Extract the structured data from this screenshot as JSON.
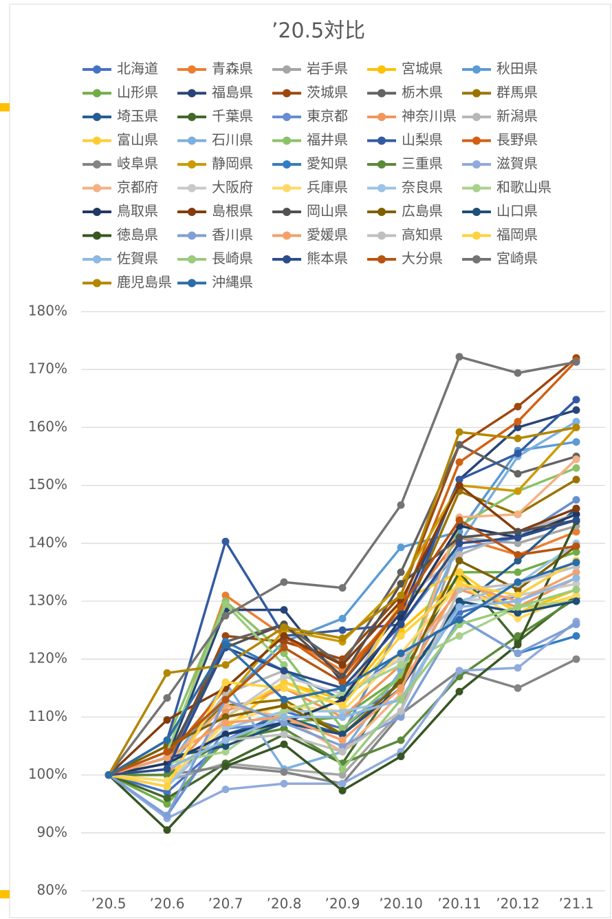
{
  "chart_data": {
    "type": "line",
    "title": "’20.5対比",
    "categories": [
      "’20.5",
      "’20.6",
      "’20.7",
      "’20.8",
      "’20.9",
      "’20.10",
      "’20.11",
      "’20.12",
      "’21.1"
    ],
    "ylim": [
      80,
      180
    ],
    "yticks": [
      {
        "value": 80,
        "label": "80%"
      },
      {
        "value": 90,
        "label": "90%"
      },
      {
        "value": 100,
        "label": "100%"
      },
      {
        "value": 110,
        "label": "110%"
      },
      {
        "value": 120,
        "label": "120%"
      },
      {
        "value": 130,
        "label": "130%"
      },
      {
        "value": 140,
        "label": "140%"
      },
      {
        "value": 150,
        "label": "150%"
      },
      {
        "value": 160,
        "label": "160%"
      },
      {
        "value": 170,
        "label": "170%"
      },
      {
        "value": 180,
        "label": "180%"
      }
    ],
    "grid": true,
    "legend": "top",
    "series": [
      {
        "name": "北海道",
        "color": "#4472C4",
        "values": [
          100,
          97,
          106,
          111,
          108,
          116,
          128,
          131,
          137
        ]
      },
      {
        "name": "青森県",
        "color": "#ED7D31",
        "values": [
          100,
          103,
          131,
          124,
          118,
          128,
          141,
          138,
          142
        ]
      },
      {
        "name": "岩手県",
        "color": "#A5A5A5",
        "values": [
          100,
          99,
          102,
          101,
          100,
          111,
          141,
          140,
          143
        ]
      },
      {
        "name": "宮城県",
        "color": "#FFC000",
        "values": [
          100,
          99,
          108,
          116,
          113,
          125,
          134,
          128,
          132
        ]
      },
      {
        "name": "秋田県",
        "color": "#5B9BD5",
        "values": [
          100,
          101,
          113,
          123,
          127,
          139.3,
          142,
          156,
          157.5
        ]
      },
      {
        "name": "山形県",
        "color": "#70AD47",
        "values": [
          100,
          95,
          106,
          109,
          110,
          117,
          135,
          135,
          138.5
        ]
      },
      {
        "name": "福島県",
        "color": "#264478",
        "values": [
          100,
          103,
          128.5,
          128.5,
          116,
          128,
          151,
          160,
          163
        ]
      },
      {
        "name": "茨城県",
        "color": "#9E480E",
        "values": [
          100,
          102,
          124,
          123,
          120,
          131,
          157,
          163.6,
          172
        ]
      },
      {
        "name": "栃木県",
        "color": "#636363",
        "values": [
          100,
          101,
          123,
          126,
          119,
          135,
          157,
          152,
          155
        ]
      },
      {
        "name": "群馬県",
        "color": "#997300",
        "values": [
          100,
          104,
          112,
          113,
          107,
          126,
          149,
          145,
          151
        ]
      },
      {
        "name": "埼玉県",
        "color": "#255E91",
        "values": [
          100,
          102,
          107,
          110,
          107,
          116,
          129,
          137,
          146
        ]
      },
      {
        "name": "千葉県",
        "color": "#43682B",
        "values": [
          100,
          96,
          102,
          107,
          102,
          117,
          135,
          123,
          131
        ]
      },
      {
        "name": "東京都",
        "color": "#698ED0",
        "values": [
          100,
          93,
          108,
          109,
          107,
          126,
          139,
          141,
          147.5
        ]
      },
      {
        "name": "神奈川県",
        "color": "#F1975A",
        "values": [
          100,
          100,
          111,
          115,
          110,
          119,
          132,
          129,
          134
        ]
      },
      {
        "name": "新潟県",
        "color": "#B7B7B7",
        "values": [
          100,
          101,
          114,
          118,
          113,
          130,
          138,
          142,
          145
        ]
      },
      {
        "name": "富山県",
        "color": "#FFCD33",
        "values": [
          100,
          98,
          110,
          116,
          112,
          130,
          135,
          128,
          131
        ]
      },
      {
        "name": "石川県",
        "color": "#7CAFDD",
        "values": [
          100,
          101,
          116,
          101,
          104,
          118,
          140,
          155,
          161
        ]
      },
      {
        "name": "福井県",
        "color": "#8CC168",
        "values": [
          100,
          106,
          130,
          121,
          108,
          117,
          143,
          149,
          153
        ]
      },
      {
        "name": "山梨県",
        "color": "#335AA1",
        "values": [
          100,
          106,
          140.3,
          124,
          125,
          126,
          151,
          155.5,
          164.8
        ]
      },
      {
        "name": "長野県",
        "color": "#D26012",
        "values": [
          100,
          103,
          115,
          124,
          117,
          129,
          154,
          161,
          171.5
        ]
      },
      {
        "name": "岐阜県",
        "color": "#848484",
        "values": [
          100,
          100,
          101.5,
          100.5,
          98.5,
          110.5,
          118,
          115,
          120
        ]
      },
      {
        "name": "静岡県",
        "color": "#CC9A00",
        "values": [
          100,
          104,
          113,
          125,
          123,
          133,
          150,
          149,
          160
        ]
      },
      {
        "name": "愛知県",
        "color": "#327DC2",
        "values": [
          100,
          101,
          123,
          118,
          113,
          121,
          127,
          121,
          124
        ]
      },
      {
        "name": "三重県",
        "color": "#5A8A39",
        "values": [
          100,
          100,
          106,
          108,
          102,
          106,
          117,
          124,
          130.5
        ]
      },
      {
        "name": "滋賀県",
        "color": "#8FAADC",
        "values": [
          100,
          92.5,
          97.5,
          98.5,
          98.5,
          104,
          118,
          118.5,
          126.5
        ]
      },
      {
        "name": "京都府",
        "color": "#F4B183",
        "values": [
          100,
          102,
          112,
          110,
          104,
          114,
          144.5,
          145,
          154.5
        ]
      },
      {
        "name": "大阪府",
        "color": "#C9C9C9",
        "values": [
          100,
          98,
          110,
          117,
          114,
          120,
          130,
          131,
          133
        ]
      },
      {
        "name": "兵庫県",
        "color": "#FFD966",
        "values": [
          100,
          99,
          109,
          112,
          111,
          121,
          133,
          127,
          131
        ]
      },
      {
        "name": "奈良県",
        "color": "#9DC3E6",
        "values": [
          100,
          98,
          108,
          111,
          111,
          113,
          130,
          133,
          140
        ]
      },
      {
        "name": "和歌山県",
        "color": "#A9D18E",
        "values": [
          100,
          102,
          104,
          111,
          114,
          119,
          124,
          129,
          130
        ]
      },
      {
        "name": "鳥取県",
        "color": "#203864",
        "values": [
          100,
          102,
          107,
          109,
          113,
          127,
          143,
          141,
          145
        ]
      },
      {
        "name": "島根県",
        "color": "#843C0C",
        "values": [
          100,
          109.5,
          115,
          124,
          119,
          130,
          150,
          142,
          146
        ]
      },
      {
        "name": "岡山県",
        "color": "#525252",
        "values": [
          100,
          103,
          122,
          126,
          117,
          133,
          141,
          142,
          144
        ]
      },
      {
        "name": "広島県",
        "color": "#7F6000",
        "values": [
          100,
          105,
          110,
          112,
          107,
          116,
          137,
          132,
          139.5
        ]
      },
      {
        "name": "山口県",
        "color": "#1F4E79",
        "values": [
          100,
          103,
          105,
          109,
          107,
          115,
          130,
          128,
          130
        ]
      },
      {
        "name": "徳島県",
        "color": "#375623",
        "values": [
          100,
          90.5,
          101.5,
          105.3,
          97.3,
          103.2,
          114.4,
          122.5,
          143.8
        ]
      },
      {
        "name": "香川県",
        "color": "#7F9FD6",
        "values": [
          100,
          93,
          113,
          109,
          105,
          110,
          127,
          121,
          126
        ]
      },
      {
        "name": "愛媛県",
        "color": "#F4A06A",
        "values": [
          100,
          103,
          109,
          110,
          106,
          115,
          133,
          130,
          135
        ]
      },
      {
        "name": "高知県",
        "color": "#BFBFBF",
        "values": [
          100,
          101,
          106,
          107,
          104,
          111,
          132,
          133,
          136
        ]
      },
      {
        "name": "福岡県",
        "color": "#FFD23F",
        "values": [
          100,
          98,
          116,
          115,
          112,
          124,
          133,
          131,
          137
        ]
      },
      {
        "name": "佐賀県",
        "color": "#8DB9E2",
        "values": [
          100,
          101,
          106,
          110,
          110,
          113,
          129,
          130,
          134
        ]
      },
      {
        "name": "長崎県",
        "color": "#9BCB7B",
        "values": [
          100,
          104,
          129.5,
          119,
          101,
          113,
          126,
          129,
          132
        ]
      },
      {
        "name": "熊本県",
        "color": "#2C4D8C",
        "values": [
          100,
          101,
          122,
          118,
          115,
          126,
          140,
          141,
          144
        ]
      },
      {
        "name": "大分県",
        "color": "#B8540F",
        "values": [
          100,
          104,
          113,
          122,
          116,
          129,
          144,
          138,
          139.5
        ]
      },
      {
        "name": "宮崎県",
        "color": "#747474",
        "values": [
          100,
          113.3,
          127.5,
          133.3,
          132.3,
          146.6,
          172.2,
          169.4,
          171.3
        ]
      },
      {
        "name": "鹿児島県",
        "color": "#B38600",
        "values": [
          100,
          117.6,
          119,
          125.5,
          123.6,
          131,
          159.2,
          158.1,
          160
        ]
      },
      {
        "name": "沖縄県",
        "color": "#2C6DA8",
        "values": [
          100,
          106,
          122.5,
          113,
          115,
          121,
          126.8,
          133.3,
          136.7
        ]
      }
    ]
  }
}
